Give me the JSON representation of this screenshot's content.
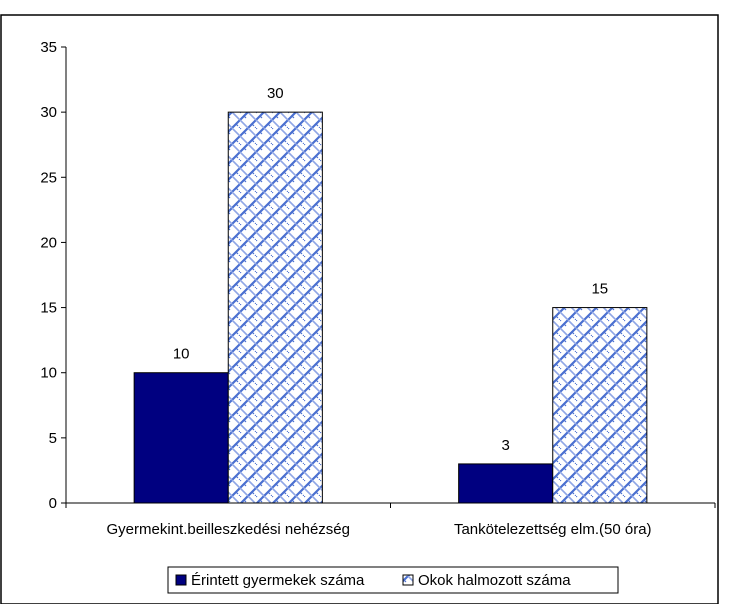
{
  "chart_data": {
    "type": "bar",
    "categories": [
      "Gyermekint.beilleszkedési nehézség",
      "Tankötelezettség elm.(50 óra)"
    ],
    "series": [
      {
        "name": "Érintett gyermekek száma",
        "values": [
          10,
          3
        ],
        "color": "#000080",
        "pattern": "solid"
      },
      {
        "name": "Okok halmozott száma",
        "values": [
          30,
          15
        ],
        "color": "#4a6fd0",
        "pattern": "weave"
      }
    ],
    "yticks": [
      "0",
      "5",
      "10",
      "15",
      "20",
      "25",
      "30",
      "35"
    ],
    "ylim": [
      0,
      35
    ],
    "grid": false,
    "legend": "bottom"
  }
}
